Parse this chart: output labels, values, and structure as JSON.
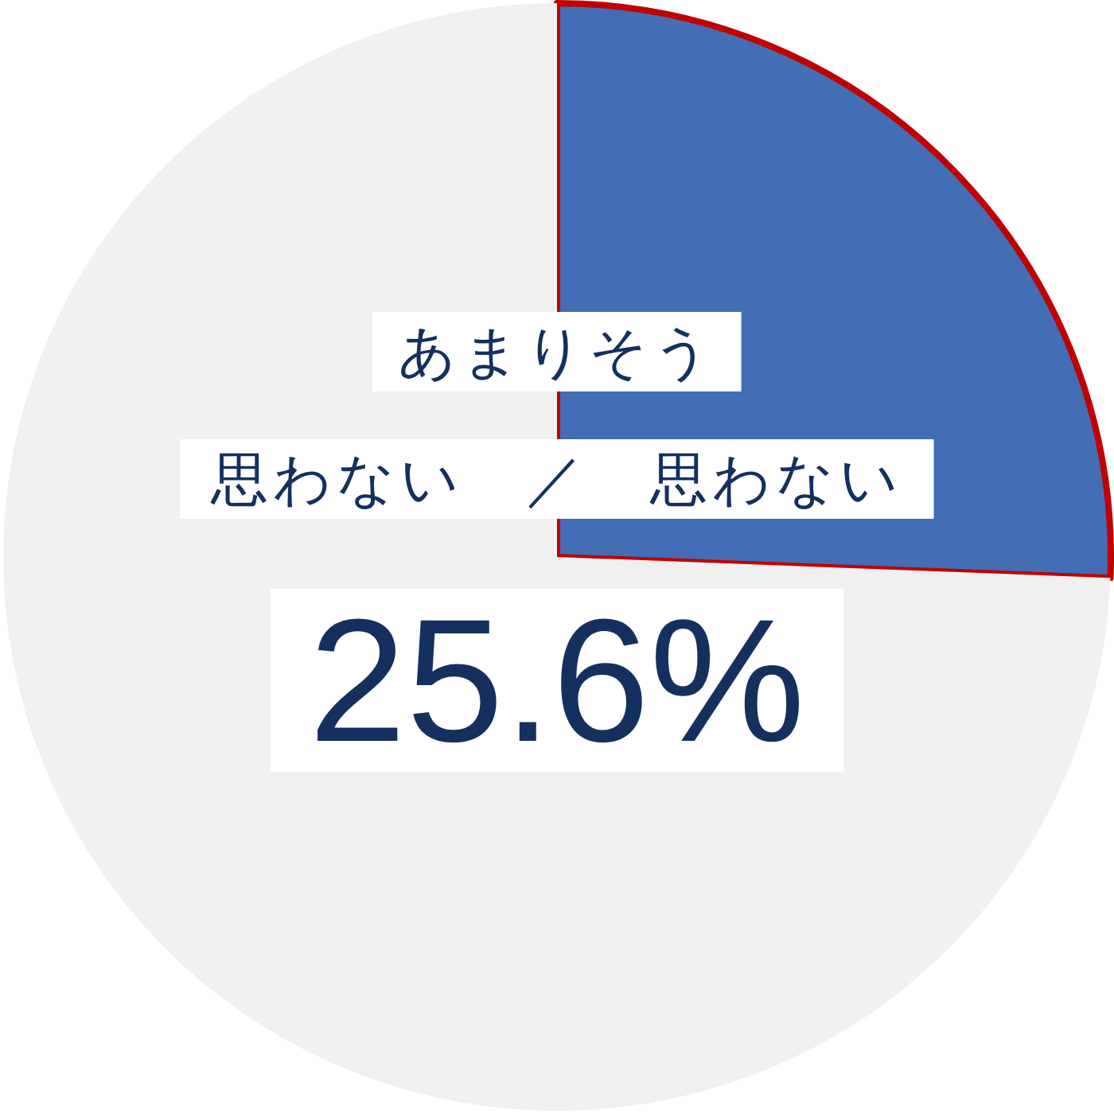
{
  "chart_data": {
    "type": "pie",
    "categories": [
      "あまりそう思わない　／　思わない",
      null
    ],
    "values": [
      25.6,
      74.4
    ],
    "colors": [
      "#436db5",
      "#f0f0f0"
    ],
    "value_labels": [
      "25.6%",
      null
    ]
  }
}
